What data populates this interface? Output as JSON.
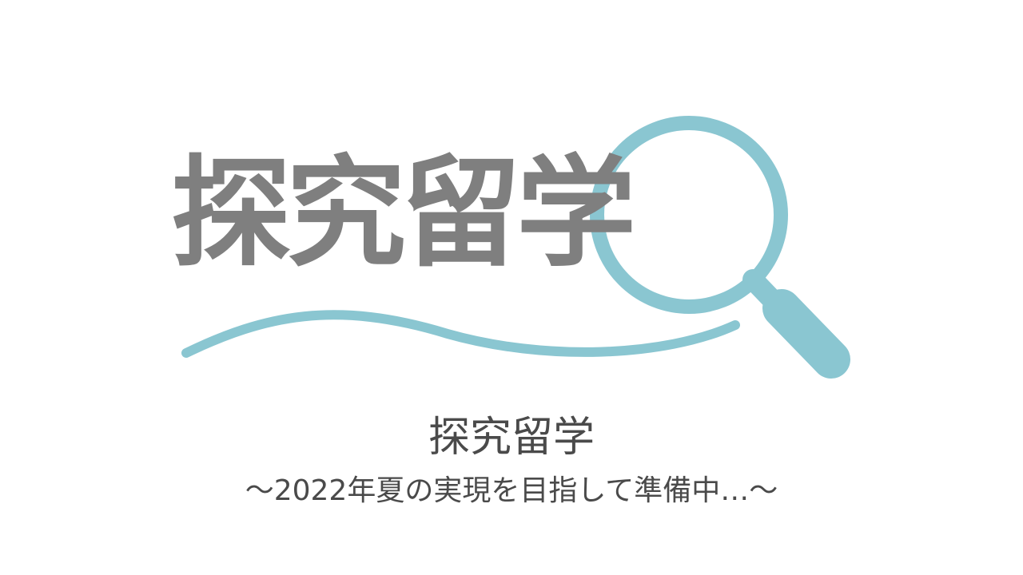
{
  "logo": {
    "text": "探究留学",
    "text_color": "#7f7f7f",
    "accent_color": "#8ac6d1",
    "icon": "magnifying-glass-icon"
  },
  "title": "探究留学",
  "subtitle": "～2022年夏の実現を目指して準備中…～",
  "text_color": "#4a4a4a"
}
